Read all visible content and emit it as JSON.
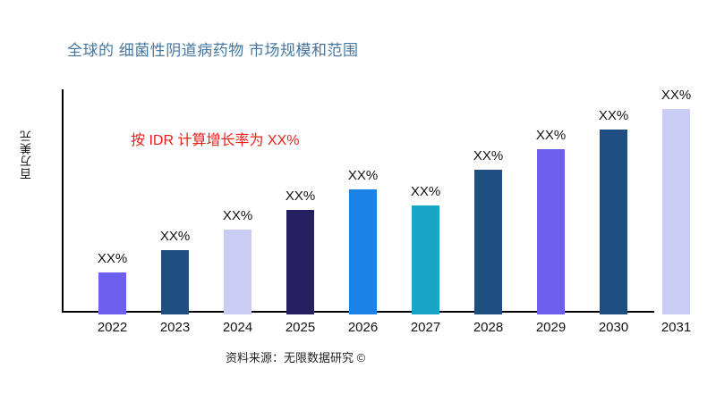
{
  "header": {
    "title": "全球的 细菌性阴道病药物 市场规模和范围"
  },
  "annotation": {
    "growth_note": "按 IDR 计算增长率为 XX%",
    "color": "#EC1E1A"
  },
  "footer": {
    "source": "资料来源：无限数据研究 ©"
  },
  "colors": {
    "title": "#4577A0",
    "axis": "#000000",
    "label_text": "#111111",
    "purple": "#6E60EF",
    "dark_steel_blue": "#1F4E80",
    "lavender": "#CACDF3",
    "dark_indigo": "#261F60",
    "bright_blue": "#1B82E8",
    "teal": "#19A6C6"
  },
  "chart_data": {
    "type": "bar",
    "title": "全球的 细菌性阴道病药物 市场规模和范围",
    "xlabel": "",
    "ylabel": "百万美元",
    "categories": [
      "2022",
      "2023",
      "2024",
      "2025",
      "2026",
      "2027",
      "2028",
      "2029",
      "2030",
      "2031"
    ],
    "bar_labels": [
      "XX%",
      "XX%",
      "XX%",
      "XX%",
      "XX%",
      "XX%",
      "XX%",
      "XX%",
      "XX%",
      "XX%"
    ],
    "relative_heights": [
      0.18,
      0.28,
      0.37,
      0.46,
      0.55,
      0.48,
      0.64,
      0.73,
      0.82,
      0.91
    ],
    "bar_colors": [
      "#6E60EF",
      "#1F4E80",
      "#CACDF3",
      "#261F60",
      "#1B82E8",
      "#19A6C6",
      "#1F4E80",
      "#6E60EF",
      "#1F4E80",
      "#CACDF3"
    ],
    "grid": false,
    "legend": "none",
    "annotation": "按 IDR 计算增长率为 XX%"
  }
}
